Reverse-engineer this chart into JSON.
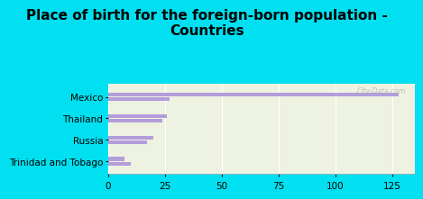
{
  "title": "Place of birth for the foreign-born population -\nCountries",
  "categories": [
    "Mexico",
    "Thailand",
    "Russia",
    "Trinidad and Tobago"
  ],
  "values1": [
    128,
    26,
    20,
    7
  ],
  "values2": [
    27,
    24,
    17,
    10
  ],
  "bar_color": "#b39ddb",
  "background_chart": "#eef2e0",
  "background_main": "#00e0f0",
  "xlim": [
    0,
    135
  ],
  "xticks": [
    0,
    25,
    50,
    75,
    100,
    125
  ],
  "title_fontsize": 11,
  "label_fontsize": 7.5,
  "tick_fontsize": 7.5
}
